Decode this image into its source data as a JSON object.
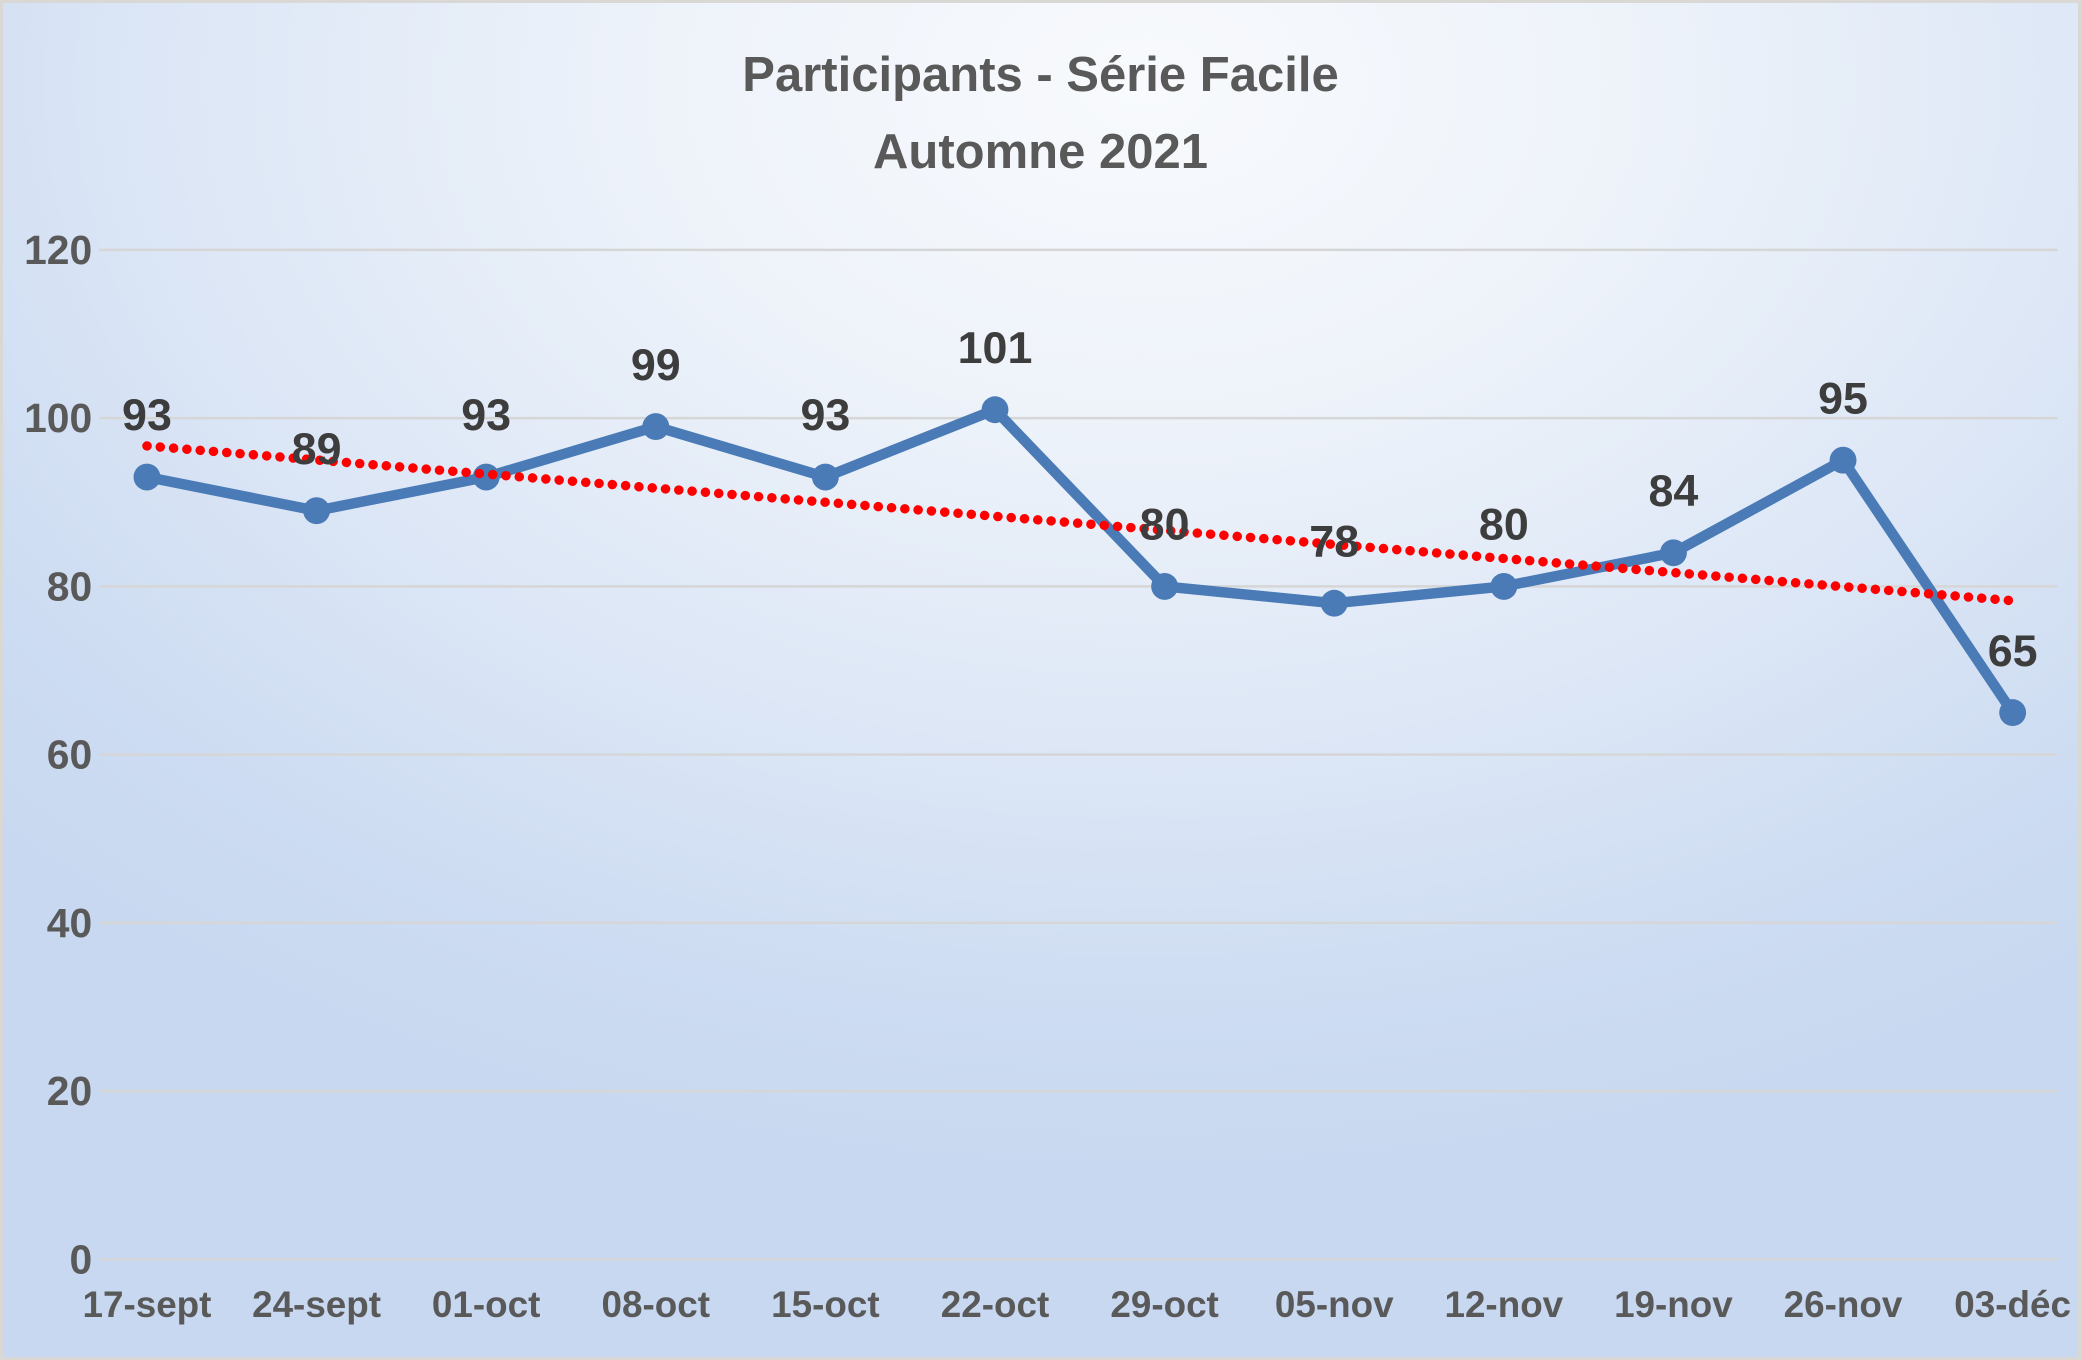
{
  "chart": {
    "title_line1": "Participants - Série Facile",
    "title_line2": "Automne 2021"
  },
  "chart_data": {
    "type": "line",
    "title": "Participants - Série Facile",
    "subtitle": "Automne 2021",
    "categories": [
      "17-sept",
      "24-sept",
      "01-oct",
      "08-oct",
      "15-oct",
      "22-oct",
      "29-oct",
      "05-nov",
      "12-nov",
      "19-nov",
      "26-nov",
      "03-déc"
    ],
    "series": [
      {
        "name": "Participants",
        "values": [
          93,
          89,
          93,
          99,
          93,
          101,
          80,
          78,
          80,
          84,
          95,
          65
        ]
      }
    ],
    "data_labels_shown": true,
    "ylim": [
      0,
      120
    ],
    "yticks": [
      0,
      20,
      40,
      60,
      80,
      100,
      120
    ],
    "grid": "horizontal",
    "legend_position": "none",
    "trendline": {
      "type": "linear",
      "style": "dotted",
      "start_value": 96.7,
      "end_value": 78.3
    },
    "colors": {
      "series_line": "#4a7bb7",
      "marker": "#4a7bb7",
      "trendline": "#fe0000",
      "gridline": "#d6d6d6",
      "axis_text": "#595959",
      "data_label_text": "#3d3d3d",
      "title_text": "#595959",
      "background_edge": "#c7d8f0",
      "background_center": "#f8fafd"
    }
  }
}
